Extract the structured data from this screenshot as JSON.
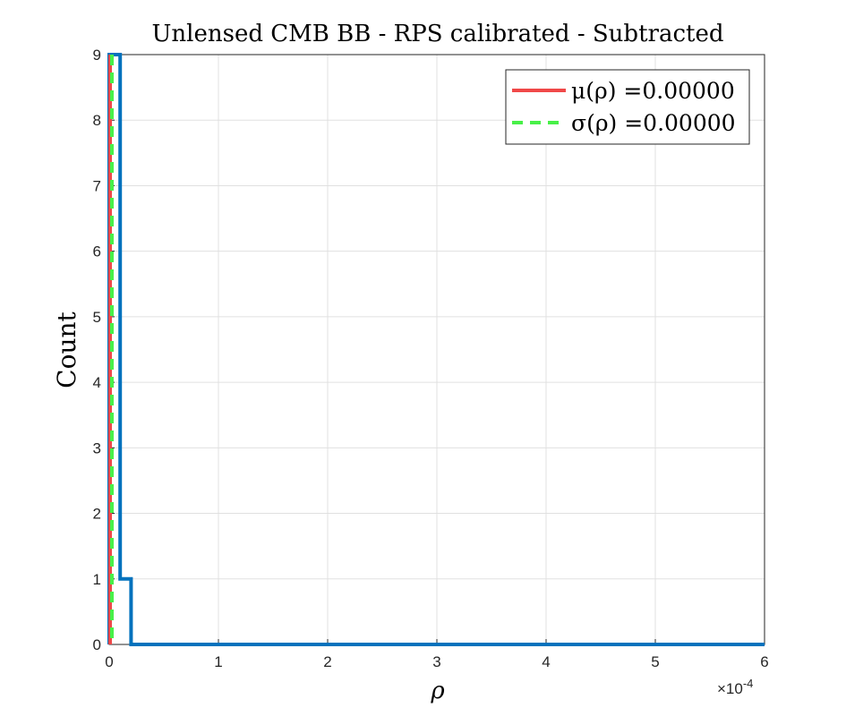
{
  "chart_data": {
    "type": "histogram",
    "title": "Unlensed CMB BB - RPS calibrated - Subtracted",
    "xlabel": "ρ",
    "ylabel": "Count",
    "x_exponent_label": "×10",
    "x_exponent_power": "-4",
    "xlim": [
      0,
      6
    ],
    "ylim": [
      0,
      9
    ],
    "xticks": [
      "0",
      "1",
      "2",
      "3",
      "4",
      "5",
      "6"
    ],
    "yticks": [
      "0",
      "1",
      "2",
      "3",
      "4",
      "5",
      "6",
      "7",
      "8",
      "9"
    ],
    "grid": true,
    "legend_position": "top-right",
    "bins": [
      {
        "x0": 0.0,
        "x1": 0.1,
        "count": 9
      },
      {
        "x0": 0.1,
        "x1": 0.2,
        "count": 1
      },
      {
        "x0": 0.2,
        "x1": 6.0,
        "count": 0
      }
    ],
    "vlines": [
      {
        "name": "μ(ρ) =0.00000",
        "x": 0.0,
        "color": "#f04848",
        "style": "solid"
      },
      {
        "name": "σ(ρ) =0.00000",
        "x": 0.0,
        "color": "#48f048",
        "style": "dashed"
      }
    ],
    "histogram_color": "#0072bd"
  }
}
